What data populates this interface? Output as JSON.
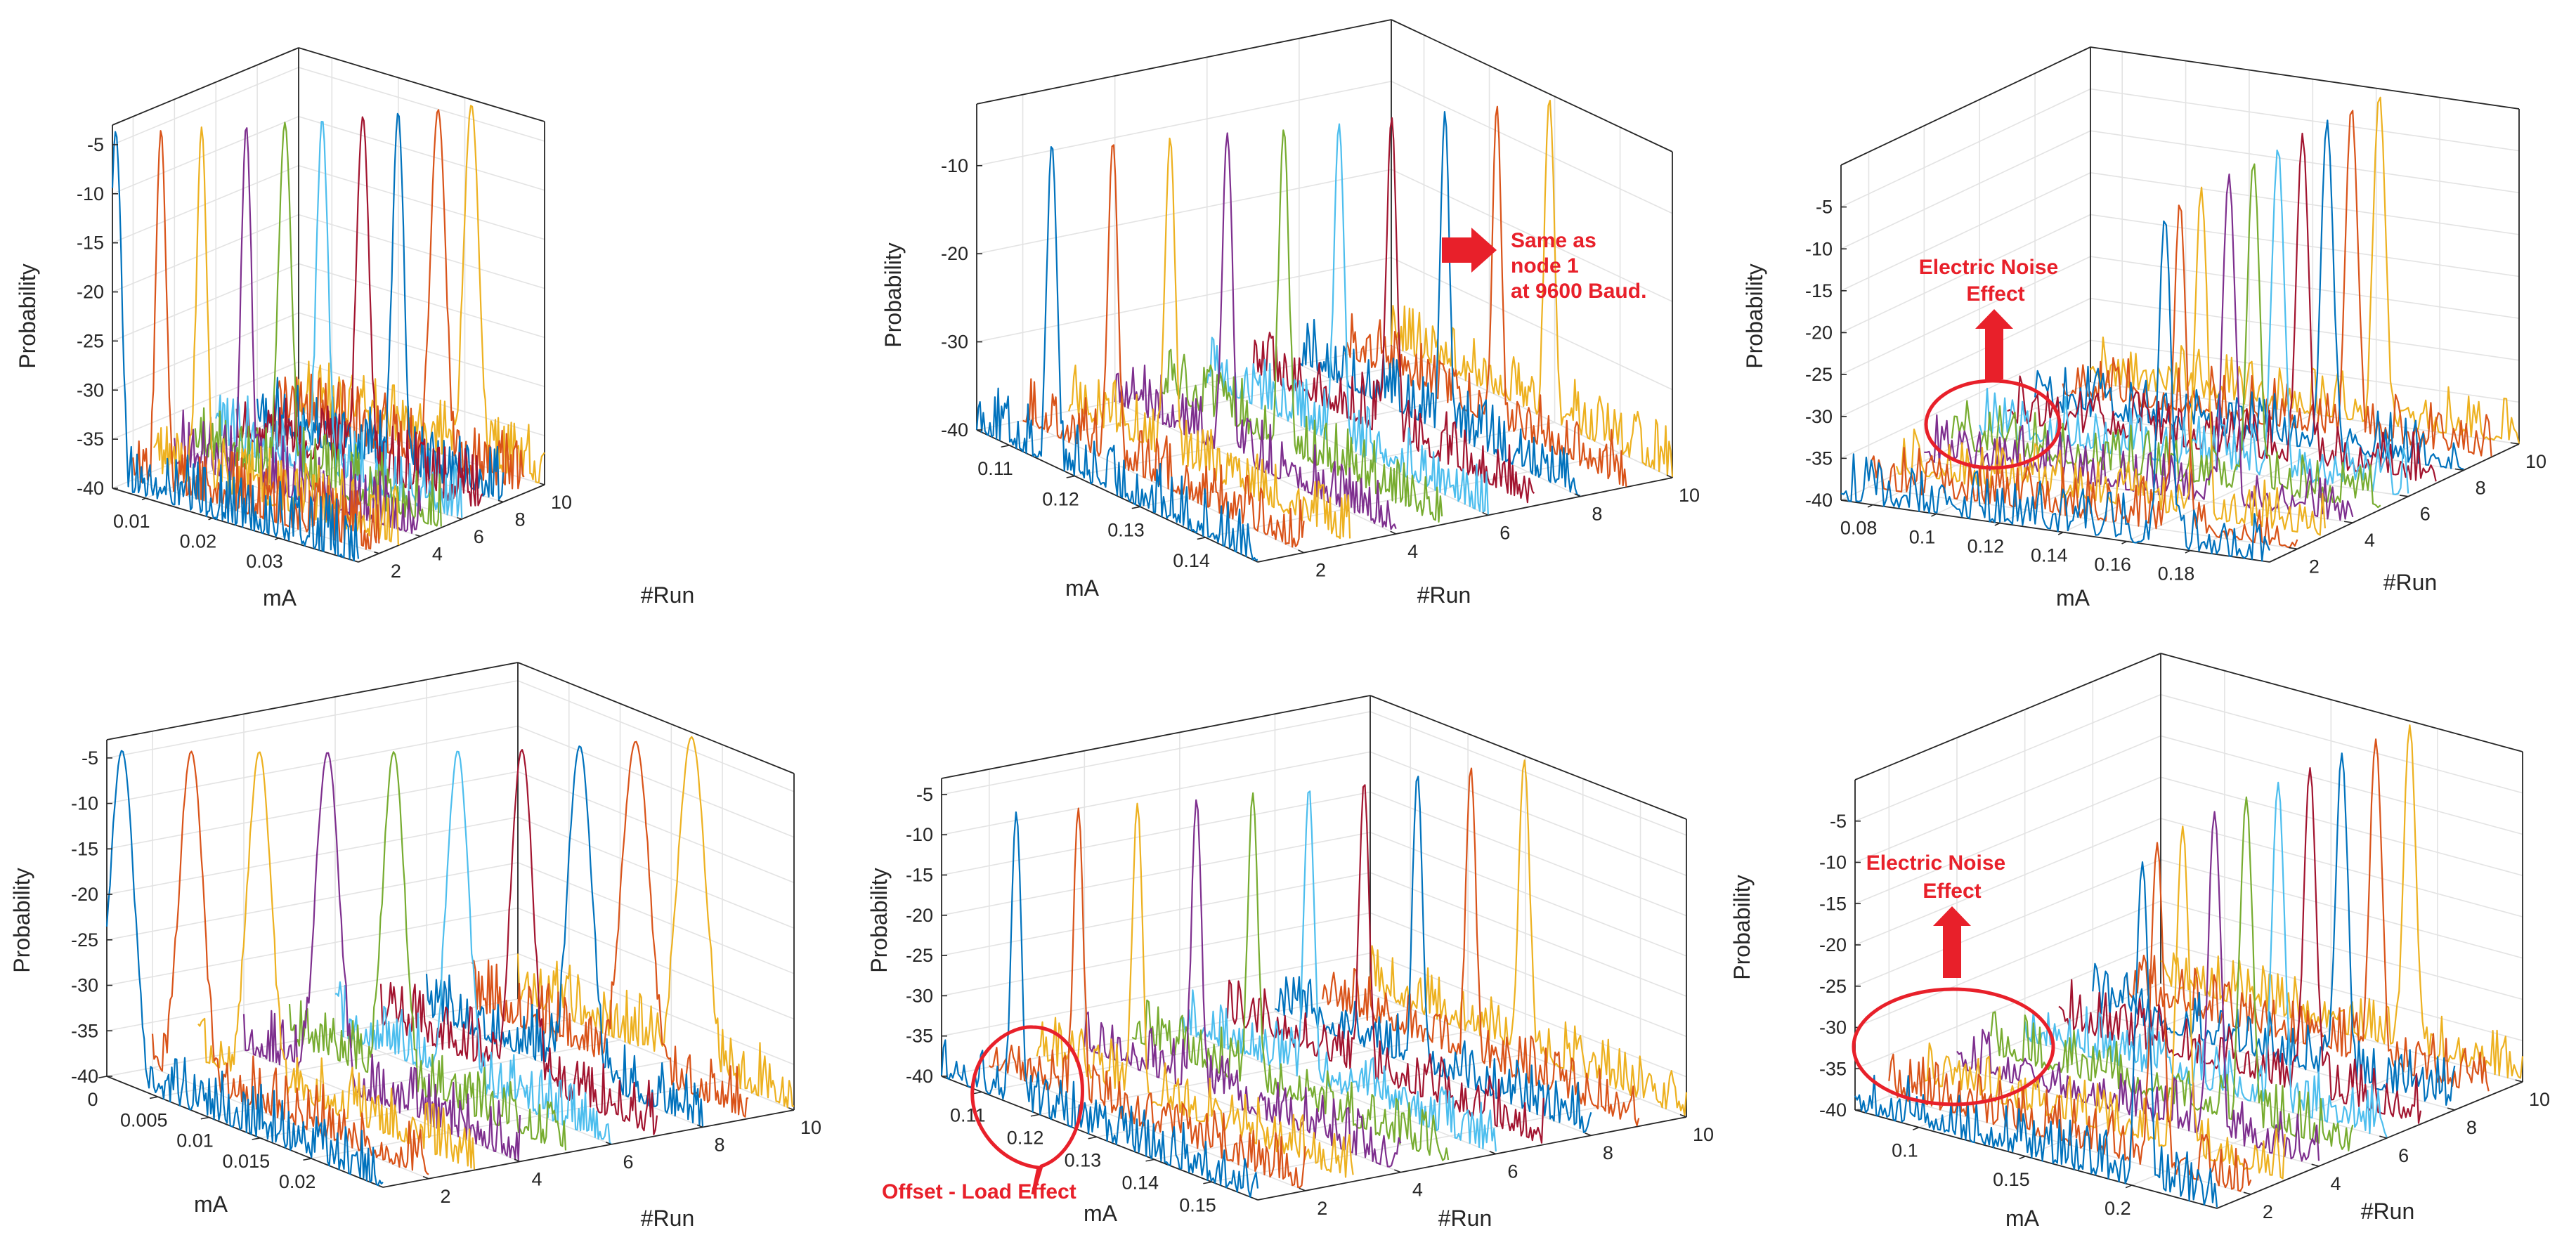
{
  "figure": {
    "colors": [
      "#0072bd",
      "#d95319",
      "#edb120",
      "#7e2f8e",
      "#77ac30",
      "#4dbeee",
      "#a2142f",
      "#0072bd",
      "#d95319",
      "#edb120"
    ],
    "accent": "#e8202a"
  },
  "chart_data": [
    {
      "type": "line",
      "subtype": "waterfall-3d",
      "xlabel": "mA",
      "ylabel": "#Run",
      "zlabel": "Probability",
      "xlim": [
        0.005,
        0.042
      ],
      "ylim": [
        1,
        10
      ],
      "zlim": [
        -40,
        -3
      ],
      "xticks": [
        "0.01",
        "0.02",
        "0.03"
      ],
      "xtick_values": [
        0.01,
        0.02,
        0.03
      ],
      "yticks": [
        "2",
        "4",
        "6",
        "8",
        "10"
      ],
      "ytick_values": [
        2,
        4,
        6,
        8,
        10
      ],
      "zticks": [
        "-5",
        "-10",
        "-15",
        "-20",
        "-25",
        "-30",
        "-35",
        "-40"
      ],
      "ztick_values": [
        -5,
        -10,
        -15,
        -20,
        -25,
        -30,
        -35,
        -40
      ],
      "series": [
        {
          "name": "Run 1",
          "peak_x": 0.0055,
          "peak_width": 0.0009
        },
        {
          "name": "Run 2",
          "peak_x": 0.0092,
          "peak_width": 0.0008
        },
        {
          "name": "Run 3",
          "peak_x": 0.0122,
          "peak_width": 0.0008
        },
        {
          "name": "Run 4",
          "peak_x": 0.0158,
          "peak_width": 0.0008
        },
        {
          "name": "Run 5",
          "peak_x": 0.0185,
          "peak_width": 0.001
        },
        {
          "name": "Run 6",
          "peak_x": 0.021,
          "peak_width": 0.0009
        },
        {
          "name": "Run 7",
          "peak_x": 0.024,
          "peak_width": 0.001
        },
        {
          "name": "Run 8",
          "peak_x": 0.0262,
          "peak_width": 0.0009
        },
        {
          "name": "Run 9",
          "peak_x": 0.0291,
          "peak_width": 0.0012
        },
        {
          "name": "Run 10",
          "peak_x": 0.031,
          "peak_width": 0.0012
        }
      ],
      "annotations": []
    },
    {
      "type": "line",
      "subtype": "waterfall-3d",
      "xlabel": "mA",
      "ylabel": "#Run",
      "zlabel": "Probability",
      "xlim": [
        0.105,
        0.148
      ],
      "ylim": [
        1,
        10
      ],
      "zlim": [
        -40,
        -3
      ],
      "xticks": [
        "0.11",
        "0.12",
        "0.13",
        "0.14"
      ],
      "xtick_values": [
        0.11,
        0.12,
        0.13,
        0.14
      ],
      "yticks": [
        "2",
        "4",
        "6",
        "8",
        "10"
      ],
      "ytick_values": [
        2,
        4,
        6,
        8,
        10
      ],
      "zticks": [
        "-10",
        "-20",
        "-30",
        "-40"
      ],
      "ztick_values": [
        -10,
        -20,
        -30,
        -40
      ],
      "series": [
        {
          "name": "Run 1",
          "peak_x": 0.1165,
          "peak_width": 0.0008
        },
        {
          "name": "Run 2",
          "peak_x": 0.1188,
          "peak_width": 0.0008
        },
        {
          "name": "Run 3",
          "peak_x": 0.1205,
          "peak_width": 0.0008
        },
        {
          "name": "Run 4",
          "peak_x": 0.1222,
          "peak_width": 0.0008
        },
        {
          "name": "Run 5",
          "peak_x": 0.1238,
          "peak_width": 0.0008
        },
        {
          "name": "Run 6",
          "peak_x": 0.1252,
          "peak_width": 0.0008
        },
        {
          "name": "Run 7",
          "peak_x": 0.1262,
          "peak_width": 0.0008
        },
        {
          "name": "Run 8",
          "peak_x": 0.1273,
          "peak_width": 0.0007
        },
        {
          "name": "Run 9",
          "peak_x": 0.1282,
          "peak_width": 0.0007
        },
        {
          "name": "Run 10",
          "peak_x": 0.1292,
          "peak_width": 0.0008
        }
      ],
      "annotations": [
        {
          "kind": "arrow-callout",
          "lines": [
            "Same as",
            "node 1",
            "at 9600 Baud."
          ]
        }
      ]
    },
    {
      "type": "line",
      "subtype": "waterfall-3d",
      "xlabel": "mA",
      "ylabel": "#Run",
      "zlabel": "Probability",
      "xlim": [
        0.07,
        0.205
      ],
      "ylim": [
        1,
        10
      ],
      "zlim": [
        -40,
        0
      ],
      "xticks": [
        "0.08",
        "0.1",
        "0.12",
        "0.14",
        "0.16",
        "0.18"
      ],
      "xtick_values": [
        0.08,
        0.1,
        0.12,
        0.14,
        0.16,
        0.18
      ],
      "yticks": [
        "2",
        "4",
        "6",
        "8",
        "10"
      ],
      "ytick_values": [
        2,
        4,
        6,
        8,
        10
      ],
      "zticks": [
        "-5",
        "-10",
        "-15",
        "-20",
        "-25",
        "-30",
        "-35",
        "-40"
      ],
      "ztick_values": [
        -5,
        -10,
        -15,
        -20,
        -25,
        -30,
        -35,
        -40
      ],
      "series": [
        {
          "name": "Run 1",
          "peak_x": 0.172,
          "peak_width": 0.002
        },
        {
          "name": "Run 2",
          "peak_x": 0.168,
          "peak_width": 0.002
        },
        {
          "name": "Run 3",
          "peak_x": 0.166,
          "peak_width": 0.002
        },
        {
          "name": "Run 4",
          "peak_x": 0.166,
          "peak_width": 0.002
        },
        {
          "name": "Run 5",
          "peak_x": 0.165,
          "peak_width": 0.002
        },
        {
          "name": "Run 6",
          "peak_x": 0.164,
          "peak_width": 0.002
        },
        {
          "name": "Run 7",
          "peak_x": 0.163,
          "peak_width": 0.002
        },
        {
          "name": "Run 8",
          "peak_x": 0.162,
          "peak_width": 0.002
        },
        {
          "name": "Run 9",
          "peak_x": 0.161,
          "peak_width": 0.002
        },
        {
          "name": "Run 10",
          "peak_x": 0.161,
          "peak_width": 0.002
        }
      ],
      "annotations": [
        {
          "kind": "arrow-ellipse",
          "lines": [
            "Electric Noise",
            "Effect"
          ]
        }
      ]
    },
    {
      "type": "line",
      "subtype": "waterfall-3d",
      "xlabel": "mA",
      "ylabel": "#Run",
      "zlabel": "Probability",
      "xlim": [
        0,
        0.027
      ],
      "ylim": [
        1,
        10
      ],
      "zlim": [
        -40,
        -3
      ],
      "xticks": [
        "0",
        "0.005",
        "0.01",
        "0.015",
        "0.02"
      ],
      "xtick_values": [
        0,
        0.005,
        0.01,
        0.015,
        0.02
      ],
      "yticks": [
        "2",
        "4",
        "6",
        "8",
        "10"
      ],
      "ytick_values": [
        2,
        4,
        6,
        8,
        10
      ],
      "zticks": [
        "-5",
        "-10",
        "-15",
        "-20",
        "-25",
        "-30",
        "-35",
        "-40"
      ],
      "ztick_values": [
        -5,
        -10,
        -15,
        -20,
        -25,
        -30,
        -35,
        -40
      ],
      "series": [
        {
          "name": "Run 1",
          "peak_x": 0.0015,
          "peak_width": 0.0012
        },
        {
          "name": "Run 2",
          "peak_x": 0.0038,
          "peak_width": 0.0012
        },
        {
          "name": "Run 3",
          "peak_x": 0.006,
          "peak_width": 0.0012
        },
        {
          "name": "Run 4",
          "peak_x": 0.0082,
          "peak_width": 0.0012
        },
        {
          "name": "Run 5",
          "peak_x": 0.0102,
          "peak_width": 0.0011
        },
        {
          "name": "Run 6",
          "peak_x": 0.012,
          "peak_width": 0.0011
        },
        {
          "name": "Run 7",
          "peak_x": 0.0138,
          "peak_width": 0.0011
        },
        {
          "name": "Run 8",
          "peak_x": 0.015,
          "peak_width": 0.0012
        },
        {
          "name": "Run 9",
          "peak_x": 0.016,
          "peak_width": 0.0014
        },
        {
          "name": "Run 10",
          "peak_x": 0.017,
          "peak_width": 0.0014
        }
      ],
      "annotations": []
    },
    {
      "type": "line",
      "subtype": "waterfall-3d",
      "xlabel": "mA",
      "ylabel": "#Run",
      "zlabel": "Probability",
      "xlim": [
        0.103,
        0.158
      ],
      "ylim": [
        1,
        10
      ],
      "zlim": [
        -40,
        -3
      ],
      "xticks": [
        "0.11",
        "0.12",
        "0.13",
        "0.14",
        "0.15"
      ],
      "xtick_values": [
        0.11,
        0.12,
        0.13,
        0.14,
        0.15
      ],
      "yticks": [
        "2",
        "4",
        "6",
        "8",
        "10"
      ],
      "ytick_values": [
        2,
        4,
        6,
        8,
        10
      ],
      "zticks": [
        "-5",
        "-10",
        "-15",
        "-20",
        "-25",
        "-30",
        "-35",
        "-40"
      ],
      "ztick_values": [
        -5,
        -10,
        -15,
        -20,
        -25,
        -30,
        -35,
        -40
      ],
      "series": [
        {
          "name": "Run 1",
          "peak_x": 0.116,
          "peak_width": 0.0009
        },
        {
          "name": "Run 2",
          "peak_x": 0.1185,
          "peak_width": 0.0009
        },
        {
          "name": "Run 3",
          "peak_x": 0.1205,
          "peak_width": 0.0009
        },
        {
          "name": "Run 4",
          "peak_x": 0.1225,
          "peak_width": 0.0009
        },
        {
          "name": "Run 5",
          "peak_x": 0.124,
          "peak_width": 0.0009
        },
        {
          "name": "Run 6",
          "peak_x": 0.1255,
          "peak_width": 0.0009
        },
        {
          "name": "Run 7",
          "peak_x": 0.1268,
          "peak_width": 0.0009
        },
        {
          "name": "Run 8",
          "peak_x": 0.1278,
          "peak_width": 0.0009
        },
        {
          "name": "Run 9",
          "peak_x": 0.1288,
          "peak_width": 0.0009
        },
        {
          "name": "Run 10",
          "peak_x": 0.1298,
          "peak_width": 0.001
        }
      ],
      "annotations": [
        {
          "kind": "speech-bubble",
          "lines": [
            "Offset - Load Effect"
          ]
        }
      ]
    },
    {
      "type": "line",
      "subtype": "waterfall-3d",
      "xlabel": "mA",
      "ylabel": "#Run",
      "zlabel": "Probability",
      "xlim": [
        0.07,
        0.24
      ],
      "ylim": [
        1,
        10
      ],
      "zlim": [
        -40,
        0
      ],
      "xticks": [
        "0.1",
        "0.15",
        "0.2"
      ],
      "xtick_values": [
        0.1,
        0.15,
        0.2
      ],
      "yticks": [
        "2",
        "4",
        "6",
        "8",
        "10"
      ],
      "ytick_values": [
        2,
        4,
        6,
        8,
        10
      ],
      "zticks": [
        "-5",
        "-10",
        "-15",
        "-20",
        "-25",
        "-30",
        "-35",
        "-40"
      ],
      "ztick_values": [
        -5,
        -10,
        -15,
        -20,
        -25,
        -30,
        -35,
        -40
      ],
      "series": [
        {
          "name": "Run 1",
          "peak_x": 0.205,
          "peak_width": 0.003
        },
        {
          "name": "Run 2",
          "peak_x": 0.196,
          "peak_width": 0.003
        },
        {
          "name": "Run 3",
          "peak_x": 0.192,
          "peak_width": 0.003
        },
        {
          "name": "Run 4",
          "peak_x": 0.191,
          "peak_width": 0.003
        },
        {
          "name": "Run 5",
          "peak_x": 0.19,
          "peak_width": 0.003
        },
        {
          "name": "Run 6",
          "peak_x": 0.189,
          "peak_width": 0.003
        },
        {
          "name": "Run 7",
          "peak_x": 0.188,
          "peak_width": 0.003
        },
        {
          "name": "Run 8",
          "peak_x": 0.187,
          "peak_width": 0.003
        },
        {
          "name": "Run 9",
          "peak_x": 0.187,
          "peak_width": 0.003
        },
        {
          "name": "Run 10",
          "peak_x": 0.187,
          "peak_width": 0.003
        }
      ],
      "annotations": [
        {
          "kind": "arrow-ellipse",
          "lines": [
            "Electric Noise",
            "Effect"
          ]
        }
      ]
    }
  ]
}
